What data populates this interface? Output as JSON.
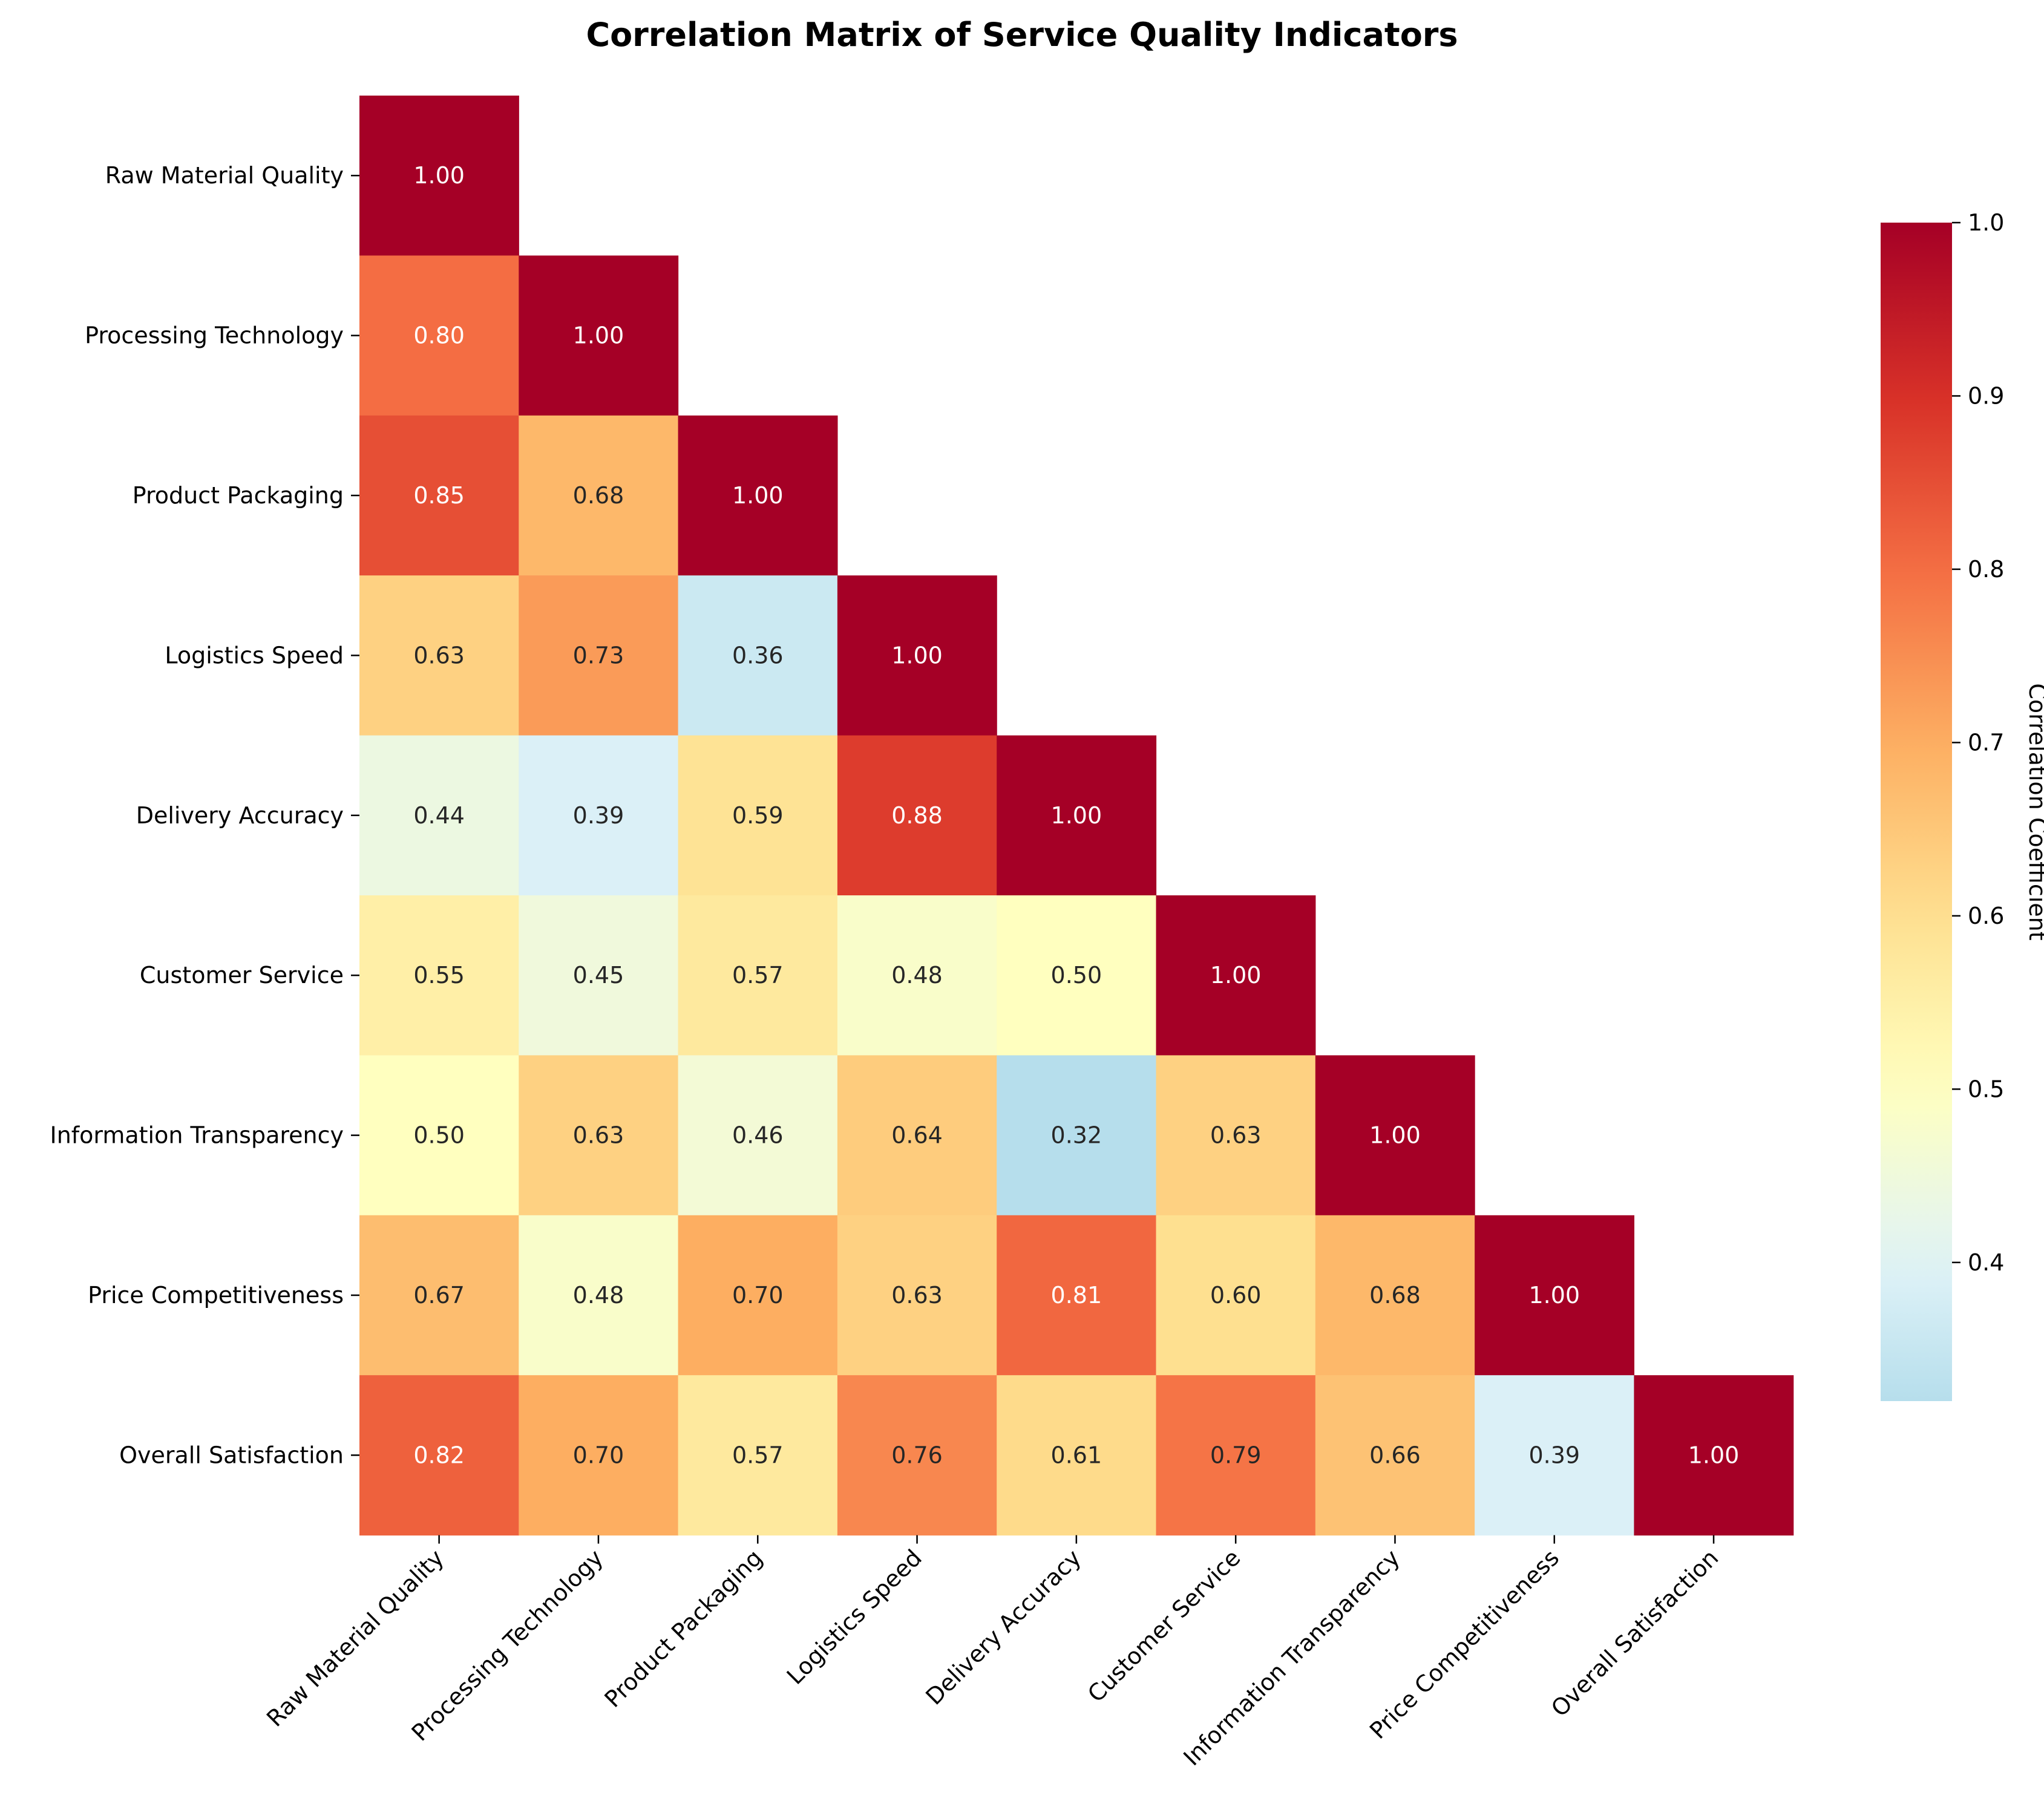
{
  "chart_data": {
    "type": "heatmap",
    "title": "Correlation Matrix of Service Quality Indicators",
    "mask": "upper-triangle",
    "labels": [
      "Raw Material Quality",
      "Processing Technology",
      "Product Packaging",
      "Logistics Speed",
      "Delivery Accuracy",
      "Customer Service",
      "Information Transparency",
      "Price Competitiveness",
      "Overall Satisfaction"
    ],
    "matrix": [
      [
        1.0
      ],
      [
        0.8,
        1.0
      ],
      [
        0.85,
        0.68,
        1.0
      ],
      [
        0.63,
        0.73,
        0.36,
        1.0
      ],
      [
        0.44,
        0.39,
        0.59,
        0.88,
        1.0
      ],
      [
        0.55,
        0.45,
        0.57,
        0.48,
        0.5,
        1.0
      ],
      [
        0.5,
        0.63,
        0.46,
        0.64,
        0.32,
        0.63,
        1.0
      ],
      [
        0.67,
        0.48,
        0.7,
        0.63,
        0.81,
        0.6,
        0.68,
        1.0
      ],
      [
        0.82,
        0.7,
        0.57,
        0.76,
        0.61,
        0.79,
        0.66,
        0.39,
        1.0
      ]
    ],
    "value_format": "0.00",
    "colormap": "RdYlBu_r (centered at 0.5)",
    "colorbar": {
      "label": "Correlation Coefficient",
      "ticks": [
        "0.4",
        "0.5",
        "0.6",
        "0.7",
        "0.8",
        "0.9",
        "1.0"
      ],
      "range": [
        0.32,
        1.0
      ]
    }
  }
}
